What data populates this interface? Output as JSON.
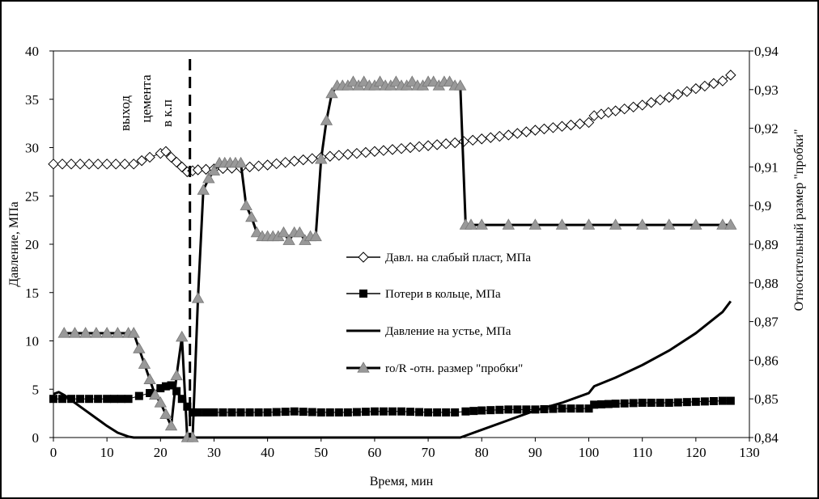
{
  "chart_data": {
    "type": "line",
    "xlabel": "Время, мин",
    "ylabel_left": "Давление, МПа",
    "ylabel_right": "Относительный размер \"пробки\"",
    "xlim": [
      0,
      130
    ],
    "ylim_left": [
      0,
      40
    ],
    "ylim_right": [
      0.84,
      0.94
    ],
    "x_ticks": [
      "0",
      "10",
      "20",
      "30",
      "40",
      "50",
      "60",
      "70",
      "80",
      "90",
      "100",
      "110",
      "120",
      "130"
    ],
    "y_ticks_left": [
      "0",
      "5",
      "10",
      "15",
      "20",
      "25",
      "30",
      "35",
      "40"
    ],
    "y_ticks_right": [
      "0,84",
      "0,85",
      "0,86",
      "0,87",
      "0,88",
      "0,89",
      "0,9",
      "0,91",
      "0,92",
      "0,93",
      "0,94"
    ],
    "grid": "none",
    "legend_position": "center-right",
    "annotations": {
      "vline_x": 25.5,
      "label_lines": [
        "выход",
        "цемента",
        "в к.п"
      ]
    },
    "series": [
      {
        "name": "Давл. на слабый пласт, МПа",
        "axis": "left",
        "marker": "diamond-open",
        "color": "#000000",
        "x": [
          0,
          5,
          10,
          15,
          18,
          20,
          21,
          22,
          23,
          24,
          25,
          26,
          27,
          30,
          35,
          40,
          45,
          50,
          55,
          60,
          65,
          70,
          75,
          80,
          85,
          90,
          95,
          100,
          101,
          105,
          110,
          115,
          120,
          125,
          126.5
        ],
        "y": [
          28.3,
          28.3,
          28.3,
          28.3,
          29.0,
          29.4,
          29.6,
          29.0,
          28.5,
          28.0,
          27.5,
          27.6,
          27.7,
          27.8,
          27.9,
          28.2,
          28.6,
          29.0,
          29.3,
          29.6,
          29.9,
          30.2,
          30.5,
          30.9,
          31.3,
          31.8,
          32.2,
          32.6,
          33.3,
          33.8,
          34.4,
          35.2,
          36.1,
          36.9,
          37.5
        ]
      },
      {
        "name": "Потери в кольце, МПа",
        "axis": "left",
        "marker": "square-filled",
        "color": "#999999",
        "x": [
          0,
          5,
          10,
          14,
          16,
          18,
          20,
          21,
          22,
          23,
          24,
          25,
          26,
          27,
          30,
          35,
          40,
          45,
          50,
          55,
          60,
          65,
          70,
          75,
          77,
          80,
          85,
          90,
          95,
          100,
          101,
          105,
          110,
          115,
          120,
          125,
          126.5
        ],
        "y": [
          4.0,
          4.0,
          4.0,
          4.0,
          4.3,
          4.6,
          5.1,
          5.3,
          5.4,
          4.8,
          4.0,
          3.2,
          2.6,
          2.6,
          2.6,
          2.6,
          2.6,
          2.7,
          2.6,
          2.6,
          2.7,
          2.7,
          2.6,
          2.6,
          2.7,
          2.8,
          2.9,
          2.9,
          3.0,
          3.0,
          3.4,
          3.5,
          3.6,
          3.6,
          3.7,
          3.8,
          3.8
        ]
      },
      {
        "name": "Давление на устье, МПа",
        "axis": "left",
        "marker": "none",
        "color": "#000000",
        "x": [
          0,
          1,
          2,
          4,
          6,
          8,
          10,
          12,
          14,
          15,
          16,
          20,
          25,
          30,
          40,
          50,
          60,
          70,
          76,
          77,
          80,
          85,
          90,
          95,
          100,
          101,
          105,
          110,
          115,
          120,
          125,
          126.5
        ],
        "y": [
          4.5,
          4.7,
          4.4,
          3.6,
          2.8,
          2.0,
          1.2,
          0.5,
          0.1,
          0,
          0,
          0,
          0,
          0,
          0,
          0,
          0,
          0,
          0,
          0.2,
          0.8,
          1.8,
          2.8,
          3.6,
          4.6,
          5.3,
          6.2,
          7.5,
          9.0,
          10.8,
          13.0,
          14.1
        ]
      },
      {
        "name": "ro/R -отн. размер \"пробки\"",
        "axis": "right",
        "marker": "triangle-filled",
        "color": "#999999",
        "x": [
          2,
          4,
          6,
          8,
          10,
          12,
          14,
          15,
          16,
          17,
          18,
          19,
          20,
          21,
          22,
          23,
          24,
          25,
          26,
          27,
          28,
          29,
          30,
          31,
          32,
          33,
          34,
          35,
          36,
          37,
          38,
          39,
          40,
          41,
          42,
          43,
          44,
          45,
          46,
          47,
          48,
          49,
          50,
          51,
          52,
          53,
          54,
          55,
          56,
          57,
          58,
          59,
          60,
          61,
          62,
          63,
          64,
          65,
          66,
          67,
          68,
          69,
          70,
          71,
          72,
          73,
          74,
          75,
          76,
          77,
          78,
          80,
          85,
          90,
          95,
          100,
          105,
          110,
          115,
          120,
          125,
          126.5
        ],
        "y": [
          0.867,
          0.867,
          0.867,
          0.867,
          0.867,
          0.867,
          0.867,
          0.867,
          0.863,
          0.859,
          0.855,
          0.851,
          0.849,
          0.846,
          0.843,
          0.856,
          0.866,
          0.84,
          0.84,
          0.876,
          0.904,
          0.907,
          0.909,
          0.911,
          0.911,
          0.911,
          0.911,
          0.911,
          0.9,
          0.897,
          0.893,
          0.892,
          0.892,
          0.892,
          0.892,
          0.893,
          0.891,
          0.893,
          0.893,
          0.891,
          0.892,
          0.892,
          0.912,
          0.922,
          0.929,
          0.931,
          0.931,
          0.931,
          0.932,
          0.931,
          0.932,
          0.931,
          0.931,
          0.932,
          0.931,
          0.931,
          0.932,
          0.931,
          0.931,
          0.932,
          0.931,
          0.931,
          0.932,
          0.932,
          0.931,
          0.932,
          0.932,
          0.931,
          0.931,
          0.895,
          0.895,
          0.895,
          0.895,
          0.895,
          0.895,
          0.895,
          0.895,
          0.895,
          0.895,
          0.895,
          0.895,
          0.895
        ]
      }
    ]
  }
}
